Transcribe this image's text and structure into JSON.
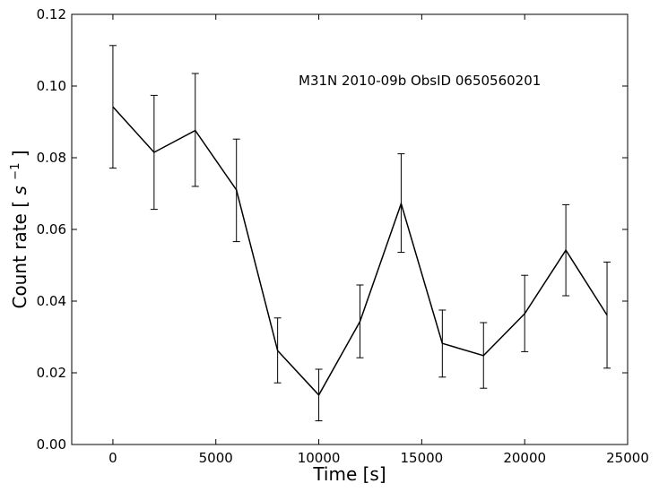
{
  "chart_data": {
    "type": "line",
    "title": "",
    "xlabel": "Time [s]",
    "ylabel_text": "Count rate",
    "ylabel_unit_base": "s",
    "ylabel_unit_exp": "−1",
    "annotation": "M31N 2010-09b   ObsID 0650560201",
    "xlim": [
      -2000,
      25000
    ],
    "ylim": [
      0,
      0.12
    ],
    "x_ticks": [
      0,
      5000,
      10000,
      15000,
      20000,
      25000
    ],
    "x_tick_labels": [
      "0",
      "5000",
      "10000",
      "15000",
      "20000",
      "25000"
    ],
    "y_ticks": [
      0,
      0.02,
      0.04,
      0.06,
      0.08,
      0.1,
      0.12
    ],
    "y_tick_labels": [
      "0.00",
      "0.02",
      "0.04",
      "0.06",
      "0.08",
      "0.10",
      "0.12"
    ],
    "grid": false,
    "series": [
      {
        "x": [
          0,
          2000,
          4000,
          6000,
          8000,
          10000,
          12000,
          14000,
          16000,
          18000,
          20000,
          22000,
          24000
        ],
        "y": [
          0.0942,
          0.0815,
          0.0876,
          0.071,
          0.0262,
          0.0138,
          0.0343,
          0.0672,
          0.0282,
          0.0248,
          0.0365,
          0.0542,
          0.0361
        ],
        "yerr_low": [
          0.0771,
          0.0656,
          0.072,
          0.0566,
          0.0172,
          0.0066,
          0.0242,
          0.0536,
          0.0188,
          0.0157,
          0.0259,
          0.0415,
          0.0213
        ],
        "yerr_high": [
          0.1113,
          0.0974,
          0.1035,
          0.0852,
          0.0353,
          0.021,
          0.0445,
          0.0811,
          0.0375,
          0.034,
          0.0472,
          0.0669,
          0.0509
        ],
        "color": "#000000"
      }
    ]
  }
}
